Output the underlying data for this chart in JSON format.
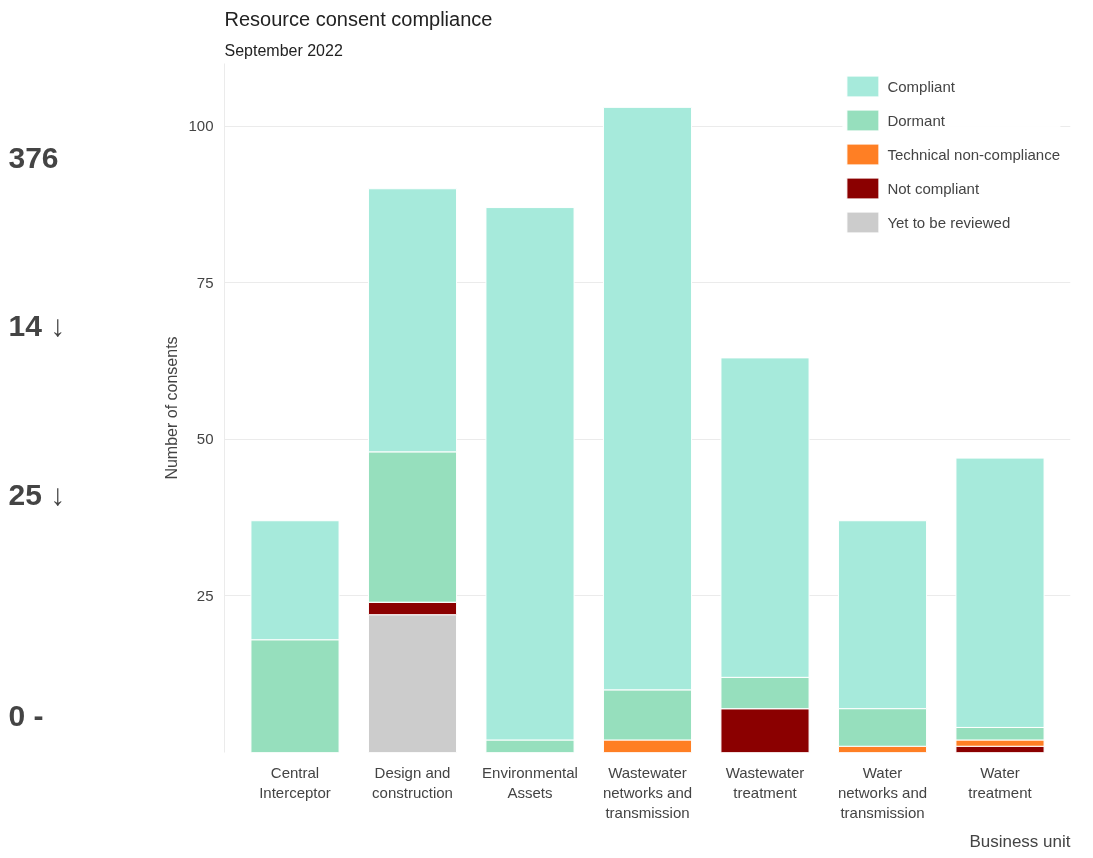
{
  "chart_data": {
    "type": "bar",
    "stacked": true,
    "title": "Resource consent compliance",
    "subtitle": "September 2022",
    "xlabel": "Business unit",
    "ylabel": "Number of consents",
    "categories": [
      "Central Interceptor",
      "Design and construction",
      "Environmental Assets",
      "Wastewater networks and transmission",
      "Wastewater treatment",
      "Water networks and transmission",
      "Water treatment"
    ],
    "series": [
      {
        "name": "Yet to be reviewed",
        "color": "#cccccc",
        "values": [
          0,
          22,
          0,
          0,
          0,
          0,
          0
        ]
      },
      {
        "name": "Not compliant",
        "color": "#8b0000",
        "values": [
          0,
          2,
          0,
          0,
          7,
          0,
          1
        ]
      },
      {
        "name": "Technical non-compliance",
        "color": "#ff7f24",
        "values": [
          0,
          0,
          0,
          2,
          0,
          1,
          1
        ]
      },
      {
        "name": "Dormant",
        "color": "#96dfbd",
        "values": [
          18,
          24,
          2,
          8,
          5,
          6,
          2
        ]
      },
      {
        "name": "Compliant",
        "color": "#a6eadb",
        "values": [
          19,
          42,
          85,
          93,
          51,
          30,
          43
        ]
      }
    ],
    "ylim": [
      0,
      110
    ],
    "yticks": [
      25,
      50,
      75,
      100
    ],
    "grid": "y",
    "legend": "top right",
    "annotations": [
      "376",
      "14 ↓",
      "25 ↓",
      "0 -"
    ]
  }
}
